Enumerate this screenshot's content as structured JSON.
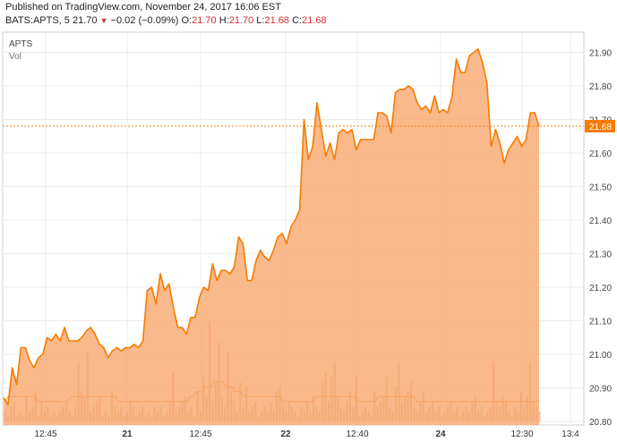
{
  "header": {
    "published": "Published on TradingView.com, November 24, 2017 16:06 EST",
    "symbol_interval": "BATS:APTS, 5",
    "last": "21.70",
    "change": "−0.02 (−0.09%)",
    "open_label": "O:",
    "open": "21.70",
    "high_label": "H:",
    "high": "21.70",
    "low_label": "L:",
    "low": "21.68",
    "close_label": "C:",
    "close": "21.68",
    "down_arrow_icon": "triangle-down-icon"
  },
  "legend": {
    "symbol": "APTS",
    "volume": "Vol"
  },
  "colors": {
    "line": "#f57c00",
    "fill": "#f9a56a",
    "price_tag": "#f57c00",
    "vol_up": "#c9c28a",
    "vol_down": "#f5a0a0",
    "vol_ma": "#f57c00",
    "down": "#d32f2f"
  },
  "chart_data": {
    "type": "area",
    "ylim": [
      20.8,
      21.95
    ],
    "y_ticks": [
      "21.90",
      "21.80",
      "21.70",
      "21.60",
      "21.50",
      "21.40",
      "21.30",
      "21.20",
      "21.10",
      "21.00",
      "20.90",
      "20.80"
    ],
    "x_ticks": [
      "12:45",
      "21",
      "12:45",
      "22",
      "12:40",
      "24",
      "12:30",
      "13:4"
    ],
    "current_price_label": "21.68",
    "current_price": 21.68,
    "price": [
      20.87,
      20.85,
      20.96,
      20.91,
      21.02,
      21.02,
      20.98,
      20.96,
      20.99,
      21.0,
      21.05,
      21.04,
      21.06,
      21.04,
      21.08,
      21.04,
      21.04,
      21.04,
      21.05,
      21.07,
      21.08,
      21.06,
      21.03,
      21.02,
      20.99,
      21.01,
      21.02,
      21.01,
      21.02,
      21.02,
      21.03,
      21.02,
      21.04,
      21.19,
      21.2,
      21.15,
      21.24,
      21.19,
      21.21,
      21.14,
      21.08,
      21.08,
      21.06,
      21.11,
      21.11,
      21.17,
      21.2,
      21.19,
      21.27,
      21.22,
      21.25,
      21.25,
      21.24,
      21.26,
      21.35,
      21.33,
      21.22,
      21.22,
      21.28,
      21.31,
      21.29,
      21.28,
      21.31,
      21.35,
      21.36,
      21.33,
      21.38,
      21.4,
      21.43,
      21.7,
      21.58,
      21.62,
      21.75,
      21.67,
      21.59,
      21.63,
      21.58,
      21.66,
      21.67,
      21.66,
      21.67,
      21.61,
      21.64,
      21.64,
      21.64,
      21.64,
      21.72,
      21.72,
      21.71,
      21.66,
      21.78,
      21.79,
      21.79,
      21.8,
      21.79,
      21.75,
      21.73,
      21.74,
      21.72,
      21.77,
      21.72,
      21.73,
      21.72,
      21.77,
      21.88,
      21.84,
      21.84,
      21.89,
      21.9,
      21.91,
      21.87,
      21.81,
      21.62,
      21.67,
      21.63,
      21.57,
      21.61,
      21.63,
      21.65,
      21.62,
      21.64,
      21.72,
      21.72,
      21.68
    ],
    "volume": [
      0.02,
      0.01,
      0.03,
      0.04,
      0.01,
      0.02,
      0.01,
      0.05,
      0.02,
      0.03,
      0.06,
      0.01,
      0.04,
      0.02,
      0.03,
      0.01,
      0.02,
      0.01,
      0.02,
      0.03,
      0.04,
      0.02,
      0.01,
      0.03,
      0.12,
      0.06,
      0.05,
      0.14,
      0.02,
      0.03,
      0.04,
      0.05,
      0.01,
      0.02,
      0.01,
      0.06,
      0.03,
      0.02,
      0.03,
      0.01,
      0.02,
      0.04,
      0.03,
      0.01,
      0.02,
      0.03,
      0.01,
      0.02,
      0.01,
      0.03,
      0.02,
      0.03,
      0.01,
      0.02,
      0.04,
      0.1,
      0.02,
      0.03,
      0.04,
      0.05,
      0.02,
      0.03,
      0.01,
      0.06,
      0.02,
      0.09,
      0.05,
      0.2,
      0.04,
      0.08,
      0.16,
      0.05,
      0.03,
      0.14,
      0.06,
      0.04,
      0.02,
      0.08,
      0.03,
      0.07,
      0.02,
      0.03,
      0.04,
      0.01,
      0.02,
      0.03,
      0.02,
      0.04,
      0.02,
      0.06,
      0.07,
      0.03,
      0.02,
      0.04,
      0.03,
      0.02,
      0.01,
      0.03,
      0.02,
      0.04,
      0.02,
      0.05,
      0.03,
      0.02,
      0.08,
      0.1,
      0.04,
      0.09,
      0.12,
      0.05,
      0.03,
      0.02,
      0.04,
      0.06,
      0.03,
      0.09,
      0.01,
      0.02,
      0.03,
      0.02,
      0.01,
      0.06,
      0.03,
      0.04,
      0.05,
      0.09,
      0.03,
      0.02,
      0.07,
      0.12,
      0.04,
      0.05,
      0.06,
      0.08,
      0.03,
      0.02,
      0.04,
      0.06,
      0.02,
      0.03,
      0.04,
      0.02,
      0.03,
      0.01,
      0.02,
      0.03,
      0.04,
      0.02,
      0.03,
      0.01,
      0.02,
      0.03,
      0.02,
      0.04,
      0.05,
      0.02,
      0.03,
      0.01,
      0.02,
      0.03,
      0.12,
      0.04,
      0.03,
      0.05,
      0.04,
      0.02,
      0.01,
      0.03,
      0.02,
      0.06,
      0.03,
      0.05,
      0.12,
      0.04,
      0.03,
      0.02
    ],
    "volume_ma": [
      0.04,
      0.05,
      0.05,
      0.05,
      0.05,
      0.05,
      0.05,
      0.05,
      0.05,
      0.05,
      0.05,
      0.04,
      0.04,
      0.04,
      0.04,
      0.04,
      0.04,
      0.04,
      0.04,
      0.04,
      0.04,
      0.04,
      0.05,
      0.05,
      0.05,
      0.05,
      0.05,
      0.05,
      0.05,
      0.05,
      0.05,
      0.05,
      0.05,
      0.05,
      0.05,
      0.05,
      0.05,
      0.05,
      0.04,
      0.04,
      0.04,
      0.04,
      0.04,
      0.04,
      0.04,
      0.04,
      0.04,
      0.04,
      0.04,
      0.04,
      0.04,
      0.04,
      0.04,
      0.04,
      0.04,
      0.04,
      0.04,
      0.04,
      0.04,
      0.04,
      0.04,
      0.04,
      0.05,
      0.05,
      0.06,
      0.06,
      0.06,
      0.07,
      0.07,
      0.07,
      0.08,
      0.08,
      0.08,
      0.08,
      0.07,
      0.07,
      0.07,
      0.06,
      0.06,
      0.06,
      0.05,
      0.05,
      0.05,
      0.05,
      0.05,
      0.05,
      0.05,
      0.05,
      0.05,
      0.05,
      0.05,
      0.05,
      0.05,
      0.04,
      0.04,
      0.04,
      0.04,
      0.04,
      0.04,
      0.04,
      0.04,
      0.04,
      0.04,
      0.04,
      0.05,
      0.05,
      0.05,
      0.05,
      0.05,
      0.05,
      0.05,
      0.05,
      0.05,
      0.05,
      0.05,
      0.05,
      0.05,
      0.05,
      0.04,
      0.04,
      0.04,
      0.04,
      0.04,
      0.04,
      0.04,
      0.05,
      0.05,
      0.05,
      0.05,
      0.05,
      0.05,
      0.05,
      0.05,
      0.05,
      0.05,
      0.05,
      0.05,
      0.05,
      0.04,
      0.04,
      0.04,
      0.04,
      0.04,
      0.04,
      0.04,
      0.04,
      0.04,
      0.04,
      0.04,
      0.04,
      0.04,
      0.04,
      0.04,
      0.04,
      0.04,
      0.04,
      0.04,
      0.04,
      0.04,
      0.04,
      0.04,
      0.04,
      0.04,
      0.04,
      0.04,
      0.04,
      0.04,
      0.04,
      0.04,
      0.04,
      0.04,
      0.04,
      0.04,
      0.04,
      0.04,
      0.04,
      0.04,
      0.04,
      0.04,
      0.04
    ]
  }
}
